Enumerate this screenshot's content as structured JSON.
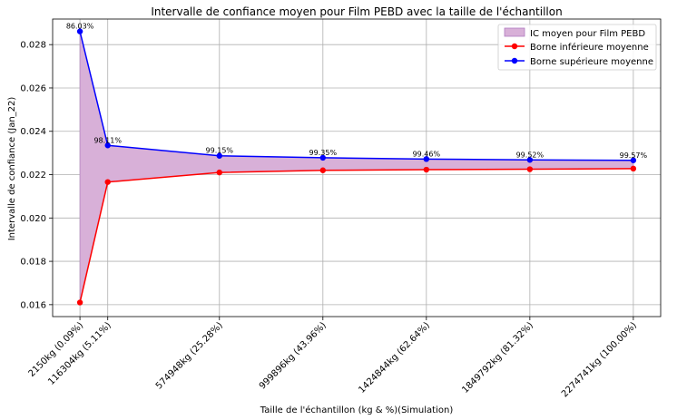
{
  "chart_data": {
    "type": "line",
    "title": "Intervalle de confiance moyen pour Film PEBD avec la taille de l'échantillon",
    "xlabel": "Taille de l'échantillon (kg & %)(Simulation)",
    "ylabel": "Intervalle de confiance (Jan_22)",
    "x": [
      2150,
      116304,
      574948,
      999896,
      1424844,
      1849792,
      2274741
    ],
    "xticklabels": [
      "2150kg (0.09%)",
      "116304kg (5.11%)",
      "574948kg (25.28%)",
      "999896kg (43.96%)",
      "1424844kg (62.64%)",
      "1849792kg (81.32%)",
      "2274741kg (100.00%)"
    ],
    "xlim": [
      -110000,
      2387000
    ],
    "ylim": [
      0.01545,
      0.02918
    ],
    "yticks": [
      0.016,
      0.018,
      0.02,
      0.022,
      0.024,
      0.026,
      0.028
    ],
    "yticklabels": [
      "0.016",
      "0.018",
      "0.020",
      "0.022",
      "0.024",
      "0.026",
      "0.028"
    ],
    "series": [
      {
        "name": "Borne inférieure moyenne",
        "color": "#ff0000",
        "values": [
          0.0161,
          0.02166,
          0.0221,
          0.0222,
          0.02223,
          0.02225,
          0.02228
        ]
      },
      {
        "name": "Borne supérieure moyenne",
        "color": "#0000ff",
        "values": [
          0.02861,
          0.02335,
          0.02287,
          0.02278,
          0.02272,
          0.02268,
          0.02266
        ]
      }
    ],
    "fill": {
      "name": "IC moyen pour Film PEBD",
      "color": "#d8b0d8",
      "edge": "#b07cc0"
    },
    "annotations": [
      "86.03%",
      "98.11%",
      "99.15%",
      "99.35%",
      "99.46%",
      "99.52%",
      "99.57%"
    ],
    "grid": true,
    "legend_position": "top-right"
  }
}
